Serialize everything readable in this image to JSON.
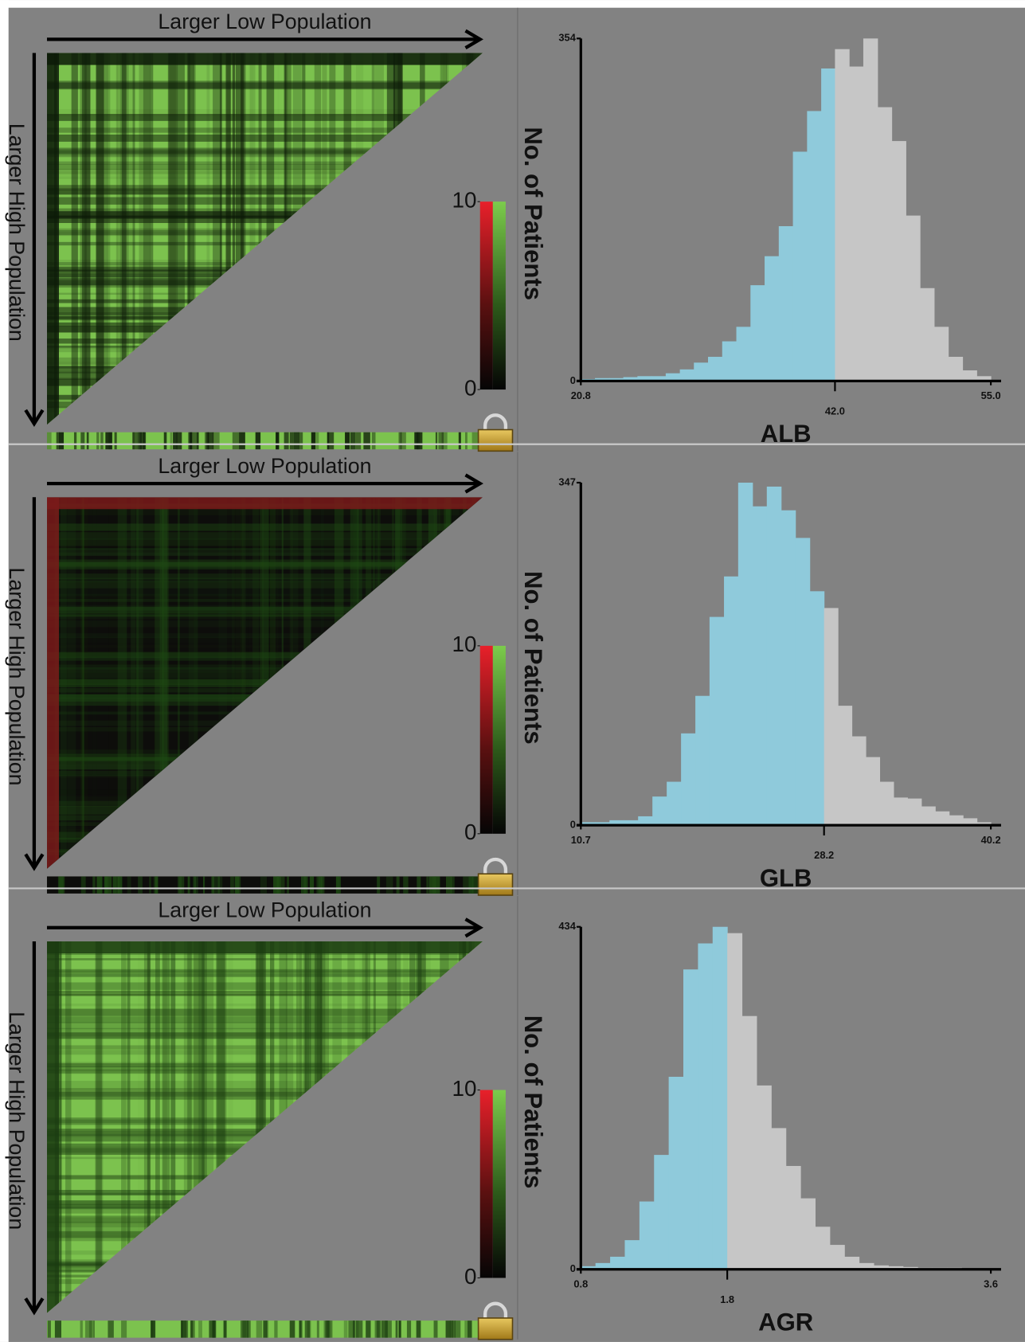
{
  "heatmaps": [
    {
      "top_label": "Larger Low Population",
      "side_label": "Larger High Population",
      "colorbar_ticks": [
        0,
        10
      ]
    },
    {
      "top_label": "Larger Low Population",
      "side_label": "Larger High Population",
      "colorbar_ticks": [
        0,
        10
      ]
    },
    {
      "top_label": "Larger Low Population",
      "side_label": "Larger High Population",
      "colorbar_ticks": [
        0,
        10
      ]
    }
  ],
  "chart_data": [
    {
      "type": "histogram",
      "x_label": "ALB",
      "y_label": "No. of Patients",
      "bins": [
        20.8,
        21.98,
        23.16,
        24.34,
        25.52,
        26.7,
        27.88,
        29.06,
        30.23,
        31.41,
        32.59,
        33.77,
        34.95,
        36.13,
        37.31,
        38.49,
        39.67,
        40.85,
        42.0,
        43.18,
        44.36,
        45.55,
        46.73,
        47.91,
        49.09,
        50.27,
        51.45,
        52.64,
        53.82,
        55.0
      ],
      "counts": [
        2,
        3,
        3,
        4,
        5,
        5,
        8,
        12,
        19,
        25,
        41,
        56,
        99,
        129,
        160,
        237,
        279,
        323,
        343,
        325,
        354,
        283,
        248,
        171,
        96,
        56,
        25,
        11,
        5
      ],
      "xlim": [
        20.8,
        55.0
      ],
      "ylim": [
        0,
        354
      ],
      "xticks": [
        20.8,
        {
          "value": 42,
          "label": "42.0"
        },
        {
          "value": 55,
          "label": "55.0"
        }
      ],
      "yticks": [
        0,
        354
      ],
      "cutoff": 42,
      "color_below": "#8fcadb",
      "color_above": "#c6c6c6"
    },
    {
      "type": "histogram",
      "x_label": "GLB",
      "y_label": "No. of Patients",
      "bins": [
        10.7,
        11.73,
        12.76,
        13.79,
        14.82,
        15.85,
        16.88,
        17.91,
        18.94,
        19.96,
        21.0,
        22.02,
        23.05,
        24.08,
        25.11,
        26.14,
        27.17,
        28.2,
        29.2,
        30.2,
        31.2,
        32.2,
        33.2,
        34.2,
        35.2,
        36.2,
        37.2,
        38.2,
        39.2,
        40.2
      ],
      "counts": [
        3,
        3,
        5,
        5,
        9,
        29,
        44,
        93,
        131,
        211,
        252,
        347,
        323,
        343,
        319,
        291,
        237,
        220,
        121,
        90,
        69,
        44,
        28,
        27,
        19,
        14,
        10,
        7,
        3
      ],
      "xlim": [
        10.7,
        40.2
      ],
      "ylim": [
        0,
        347
      ],
      "xticks": [
        10.7,
        28.2,
        40.2
      ],
      "yticks": [
        0,
        347
      ],
      "cutoff": 28.2,
      "color_below": "#8fcadb",
      "color_above": "#c6c6c6"
    },
    {
      "type": "histogram",
      "x_label": "AGR",
      "y_label": "No. of Patients",
      "bins": [
        0.8,
        0.9,
        1.0,
        1.1,
        1.2,
        1.3,
        1.4,
        1.5,
        1.6,
        1.7,
        1.8,
        1.9,
        2.0,
        2.1,
        2.2,
        2.3,
        2.4,
        2.5,
        2.6,
        2.7,
        2.8,
        2.9,
        3.0,
        3.1,
        3.2,
        3.3,
        3.4,
        3.5,
        3.6
      ],
      "counts": [
        4,
        8,
        16,
        37,
        86,
        145,
        244,
        380,
        413,
        434,
        426,
        321,
        233,
        179,
        131,
        90,
        54,
        31,
        16,
        8,
        5,
        4,
        3,
        2,
        2,
        2,
        1,
        1
      ],
      "xlim": [
        0.8,
        3.6
      ],
      "ylim": [
        0,
        434
      ],
      "xticks": [
        0.8,
        1.8,
        3.6
      ],
      "yticks": [
        0,
        434
      ],
      "cutoff": 1.8,
      "color_below": "#8fcadb",
      "color_above": "#c6c6c6"
    }
  ]
}
